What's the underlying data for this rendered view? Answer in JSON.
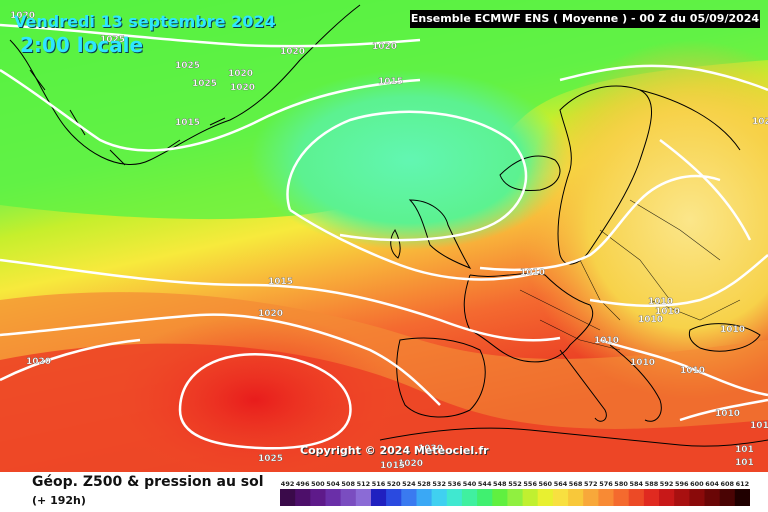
{
  "header": {
    "date": "Vendredi 13 septembre 2024",
    "time": "2:00 locale",
    "banner": "Ensemble ECMWF ENS  ( Moyenne )  -  00 Z du 05/09/2024"
  },
  "map": {
    "copyright": "Copyright © 2024 Meteociel.fr",
    "pressure_labels": [
      "1020",
      "1025",
      "1020",
      "1020",
      "1025",
      "1025",
      "1020",
      "1015",
      "1020",
      "1015",
      "1010",
      "1015",
      "1020",
      "1020",
      "1010",
      "1010",
      "1010",
      "1010",
      "1010",
      "1010",
      "1010",
      "1010",
      "1010",
      "1025",
      "101",
      "101",
      "1020",
      "1030",
      "1015",
      "102"
    ],
    "colors": {
      "green_bright": "#3cf03c",
      "green": "#7df25a",
      "teal_low": "#5ef4a6",
      "yellow_green": "#c8f02a",
      "yellow": "#f6ef3a",
      "pale_yellow": "#fbe98c",
      "orange": "#f7a23a",
      "red_orange": "#f56b34",
      "red": "#e8231e",
      "isobar": "#ffffff",
      "coast": "#000000"
    }
  },
  "footer": {
    "title": "Géop. Z500 & pression au sol",
    "subtitle": "(+ 192h)"
  },
  "legend": {
    "values": [
      "492",
      "496",
      "500",
      "504",
      "508",
      "512",
      "516",
      "520",
      "524",
      "528",
      "532",
      "536",
      "540",
      "544",
      "548",
      "552",
      "556",
      "560",
      "564",
      "568",
      "572",
      "576",
      "580",
      "584",
      "588",
      "592",
      "596",
      "600",
      "604",
      "608",
      "612"
    ],
    "colors": [
      "#3a0a4a",
      "#4d0f6a",
      "#5e1a8a",
      "#6a2fa8",
      "#7a4dc0",
      "#8b6bd6",
      "#2020c0",
      "#2a4ae0",
      "#3a7af0",
      "#3aa8f5",
      "#40d0f0",
      "#40e8d0",
      "#40f0a0",
      "#40f070",
      "#60f040",
      "#90f040",
      "#c0f030",
      "#e8f030",
      "#f8e040",
      "#f8c83a",
      "#f8a83a",
      "#f88a34",
      "#f46a2e",
      "#ec4a26",
      "#e02a20",
      "#c81818",
      "#a81010",
      "#8a0a0a",
      "#6a0606",
      "#4a0404",
      "#200000"
    ]
  }
}
